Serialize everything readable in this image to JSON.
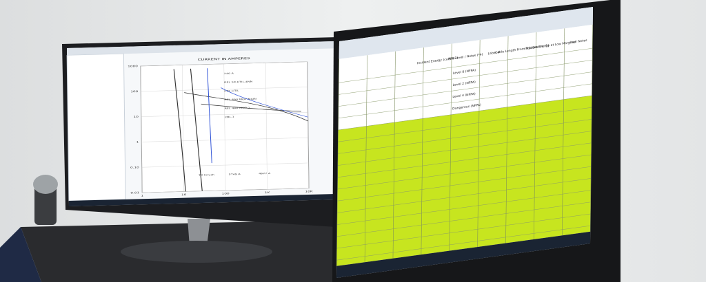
{
  "left_monitor": {
    "title": "CURRENT IN AMPERES",
    "y_labels": [
      "1000",
      "100",
      "10",
      "1",
      "0.10",
      "0.01"
    ],
    "x_labels": [
      "1",
      "10",
      "100",
      "1K",
      "10K"
    ],
    "curve_labels": [
      "240 A",
      "REL 5R-UTIL-4NN",
      "CBL-UTIL",
      "REL 4AV MOP-MAIN",
      "REL 4AV MOP-1",
      "CBL-1",
      "TX Inrush",
      "5T49 A",
      "4627 A"
    ]
  },
  "right_monitor": {
    "headers": [
      "Incident Energy (cal/cm2)",
      "PPE Level / Notes (*4)",
      "Label #",
      "Cable Length From Trip Device (ft)",
      "Incident Energy at Low Marginal",
      "User Notes"
    ],
    "notes": [
      "Level 0 (NFPA)",
      "Level 2 (NFPA)",
      "Level 4 (NFPA)",
      "Dangerous (NFPA)"
    ]
  }
}
